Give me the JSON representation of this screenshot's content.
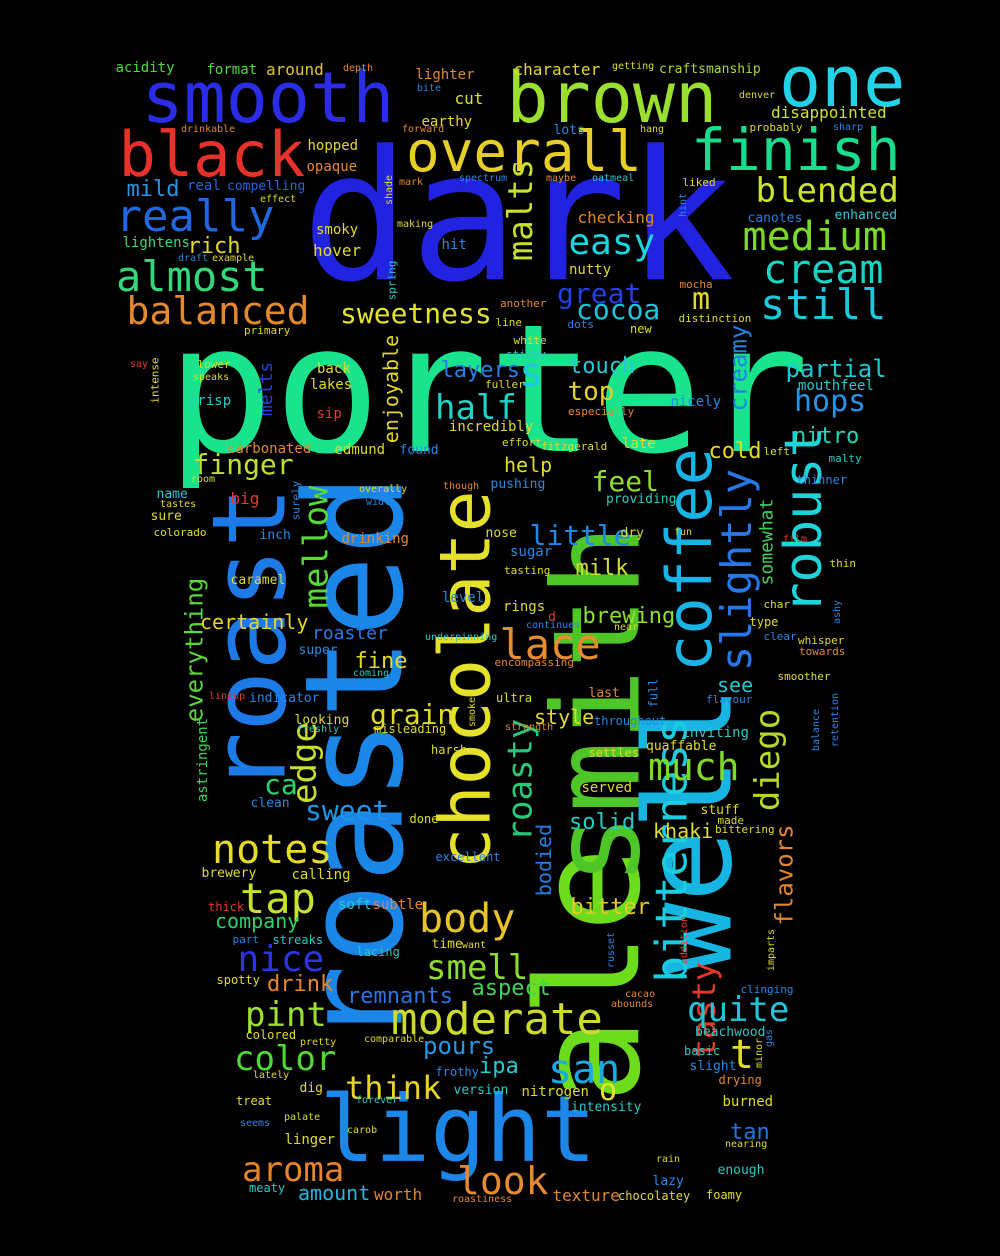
{
  "words": [
    {
      "t": "porter",
      "c": "#19e38c"
    },
    {
      "t": "dark",
      "c": "#2223e0"
    },
    {
      "t": "roasted",
      "c": "#1a86e8"
    },
    {
      "t": "ale",
      "c": "#6cdc1d"
    },
    {
      "t": "smith",
      "c": "#4ec628"
    },
    {
      "t": "well",
      "c": "#17b6e2"
    },
    {
      "t": "roast",
      "c": "#1c7be6"
    },
    {
      "t": "chocolate",
      "c": "#e5e12a"
    },
    {
      "t": "light",
      "c": "#1d87e7"
    },
    {
      "t": "smooth",
      "c": "#2a2ce6"
    },
    {
      "t": "brown",
      "c": "#9be031"
    },
    {
      "t": "one",
      "c": "#22d3e8"
    },
    {
      "t": "coffee",
      "c": "#19b4e5"
    },
    {
      "t": "black",
      "c": "#e8312a"
    },
    {
      "t": "overall",
      "c": "#e6cf29"
    },
    {
      "t": "finish",
      "c": "#1adc8d"
    },
    {
      "t": "robust",
      "c": "#1fd3d8"
    },
    {
      "t": "bitterness",
      "c": "#1acde0"
    },
    {
      "t": "really",
      "c": "#2168e0"
    },
    {
      "t": "medium",
      "c": "#7ad92a"
    },
    {
      "t": "cream",
      "c": "#1ad3c6"
    },
    {
      "t": "almost",
      "c": "#34d77a"
    },
    {
      "t": "balanced",
      "c": "#e48a2e"
    },
    {
      "t": "still",
      "c": "#1ec9dd"
    },
    {
      "t": "slightly",
      "c": "#2578e6"
    },
    {
      "t": "blended",
      "c": "#cde32f"
    },
    {
      "t": "moderate",
      "c": "#cddb2f"
    },
    {
      "t": "diego",
      "c": "#b6d72c"
    },
    {
      "t": "notes",
      "c": "#e4db2b"
    },
    {
      "t": "mellow",
      "c": "#54d937"
    },
    {
      "t": "malts",
      "c": "#c9e02e"
    },
    {
      "t": "easy",
      "c": "#1ad5e2"
    },
    {
      "t": "lace",
      "c": "#e68e2f"
    },
    {
      "t": "body",
      "c": "#e8c42b"
    },
    {
      "t": "tap",
      "c": "#c8e030"
    },
    {
      "t": "san",
      "c": "#1aa8e2"
    },
    {
      "t": "look",
      "c": "#e68a2f"
    },
    {
      "t": "much",
      "c": "#7ed92a"
    },
    {
      "t": "edge",
      "c": "#c6de2f"
    },
    {
      "t": "roasty",
      "c": "#29c879"
    },
    {
      "t": "aroma",
      "c": "#e5842d"
    },
    {
      "t": "nice",
      "c": "#2d35e3"
    },
    {
      "t": "pint",
      "c": "#9cdf32"
    },
    {
      "t": "color",
      "c": "#4edb37"
    },
    {
      "t": "smell",
      "c": "#8fdc31"
    },
    {
      "t": "half",
      "c": "#1ed5c8"
    },
    {
      "t": "think",
      "c": "#e7d22c"
    },
    {
      "t": "tasty",
      "c": "#e7382c"
    },
    {
      "t": "quite",
      "c": "#1fc7d8"
    },
    {
      "t": "sweetness",
      "c": "#e4e12f"
    },
    {
      "t": "great",
      "c": "#2340e2"
    },
    {
      "t": "cocoa",
      "c": "#1ec4d9"
    },
    {
      "t": "hops",
      "c": "#2694e6"
    },
    {
      "t": "finger",
      "c": "#bfe030"
    },
    {
      "t": "sweet",
      "c": "#1f95e6"
    },
    {
      "t": "everything",
      "c": "#5bd73a"
    },
    {
      "t": "creamy",
      "c": "#1c84e3"
    },
    {
      "t": "flavors",
      "c": "#e4862d"
    },
    {
      "t": "t",
      "c": "#e1d92b"
    },
    {
      "t": "m",
      "c": "#e2d92b"
    },
    {
      "t": "s",
      "c": "#1fc7e0"
    },
    {
      "t": "o",
      "c": "#e4e42f"
    },
    {
      "t": "ca",
      "c": "#26d36d"
    },
    {
      "t": "feel",
      "c": "#8fdd30"
    },
    {
      "t": "top",
      "c": "#e5d12b"
    },
    {
      "t": "little",
      "c": "#1e88e4"
    },
    {
      "t": "partial",
      "c": "#1ec9d3"
    },
    {
      "t": "layers",
      "c": "#2680e6"
    },
    {
      "t": "grain",
      "c": "#e0d92b"
    },
    {
      "t": "touch",
      "c": "#26c8d9"
    },
    {
      "t": "milk",
      "c": "#d1e030"
    },
    {
      "t": "pours",
      "c": "#2497e6"
    },
    {
      "t": "solid",
      "c": "#23cdc6"
    },
    {
      "t": "aspect",
      "c": "#3fd35a"
    },
    {
      "t": "drink",
      "c": "#e6862d"
    },
    {
      "t": "remnants",
      "c": "#2a75e4"
    },
    {
      "t": "fine",
      "c": "#e0db2b"
    },
    {
      "t": "bitter",
      "c": "#e5c92b"
    },
    {
      "t": "brewing",
      "c": "#91de31"
    },
    {
      "t": "nitro",
      "c": "#25d6b8"
    },
    {
      "t": "cold",
      "c": "#e6d72b"
    },
    {
      "t": "rich",
      "c": "#e5d72b"
    },
    {
      "t": "mild",
      "c": "#2595e6"
    },
    {
      "t": "help",
      "c": "#e3da2b"
    },
    {
      "t": "see",
      "c": "#1fc8d7"
    },
    {
      "t": "style",
      "c": "#e3d92b"
    },
    {
      "t": "khaki",
      "c": "#dcdf2e"
    },
    {
      "t": "certainly",
      "c": "#e4d62b"
    },
    {
      "t": "company",
      "c": "#2bd26c"
    },
    {
      "t": "amount",
      "c": "#22b8e2"
    },
    {
      "t": "worth",
      "c": "#e3862d"
    },
    {
      "t": "texture",
      "c": "#e4862d"
    },
    {
      "t": "ipa",
      "c": "#23c8d2"
    },
    {
      "t": "tan",
      "c": "#2374e4"
    },
    {
      "t": "bodied",
      "c": "#2480e4"
    },
    {
      "t": "somewhat",
      "c": "#3fd35a"
    },
    {
      "t": "enjoyable",
      "c": "#e4d72b"
    },
    {
      "t": "melts",
      "c": "#2740e2"
    },
    {
      "t": "roaster",
      "c": "#2a7be6"
    },
    {
      "t": "character",
      "c": "#e5d72b"
    },
    {
      "t": "disappointed",
      "c": "#cfe230"
    },
    {
      "t": "around",
      "c": "#e4c42b"
    },
    {
      "t": "format",
      "c": "#4bdc39"
    },
    {
      "t": "acidity",
      "c": "#4bdc39"
    },
    {
      "t": "lighter",
      "c": "#e48a2e"
    },
    {
      "t": "craftsmanship",
      "c": "#a7de30"
    },
    {
      "t": "cut",
      "c": "#dde02e"
    },
    {
      "t": "earthy",
      "c": "#e4d72b"
    },
    {
      "t": "hopped",
      "c": "#e5d72b"
    },
    {
      "t": "opaque",
      "c": "#e6862d"
    },
    {
      "t": "real",
      "c": "#2168e0"
    },
    {
      "t": "compelling",
      "c": "#2168e0"
    },
    {
      "t": "lots",
      "c": "#1f8ee4"
    },
    {
      "t": "checking",
      "c": "#e5862d"
    },
    {
      "t": "enhanced",
      "c": "#2ac9e0"
    },
    {
      "t": "canotes",
      "c": "#2480e4"
    },
    {
      "t": "lightens",
      "c": "#3bd87a"
    },
    {
      "t": "smoky",
      "c": "#e0db2b"
    },
    {
      "t": "hover",
      "c": "#e4d72b"
    },
    {
      "t": "hit",
      "c": "#2688e6"
    },
    {
      "t": "nutty",
      "c": "#e4d72b"
    },
    {
      "t": "back",
      "c": "#e0db2b"
    },
    {
      "t": "lakes",
      "c": "#e0db2b"
    },
    {
      "t": "crisp",
      "c": "#2ac9c8"
    },
    {
      "t": "sip",
      "c": "#e8382c"
    },
    {
      "t": "carbonated",
      "c": "#e5862d"
    },
    {
      "t": "edmund",
      "c": "#e0db2b"
    },
    {
      "t": "found",
      "c": "#2688e6"
    },
    {
      "t": "incredibly",
      "c": "#e0db2b"
    },
    {
      "t": "nicely",
      "c": "#2688e6"
    },
    {
      "t": "late",
      "c": "#e0db2b"
    },
    {
      "t": "mouthfeel",
      "c": "#2ac9c8"
    },
    {
      "t": "big",
      "c": "#e8382c"
    },
    {
      "t": "name",
      "c": "#1fc8d7"
    },
    {
      "t": "sure",
      "c": "#e0db2b"
    },
    {
      "t": "inch",
      "c": "#2688e6"
    },
    {
      "t": "caramel",
      "c": "#e0db2b"
    },
    {
      "t": "drinking",
      "c": "#e5862d"
    },
    {
      "t": "sugar",
      "c": "#2688e6"
    },
    {
      "t": "nose",
      "c": "#e0db2b"
    },
    {
      "t": "dry",
      "c": "#e0db2b"
    },
    {
      "t": "level",
      "c": "#2688e6"
    },
    {
      "t": "rings",
      "c": "#e0db2b"
    },
    {
      "t": "super",
      "c": "#2688e6"
    },
    {
      "t": "looking",
      "c": "#e0db2b"
    },
    {
      "t": "astringent",
      "c": "#3fd35a"
    },
    {
      "t": "clean",
      "c": "#2688e6"
    },
    {
      "t": "inviting",
      "c": "#2ac9c8"
    },
    {
      "t": "served",
      "c": "#e0db2b"
    },
    {
      "t": "quaffable",
      "c": "#e0db2b"
    },
    {
      "t": "stuff",
      "c": "#e0db2b"
    },
    {
      "t": "brewery",
      "c": "#e0db2b"
    },
    {
      "t": "calling",
      "c": "#e0db2b"
    },
    {
      "t": "soft",
      "c": "#2ac9c8"
    },
    {
      "t": "subtle",
      "c": "#e5862d"
    },
    {
      "t": "lacing",
      "c": "#2ac9c8"
    },
    {
      "t": "time",
      "c": "#e0db2b"
    },
    {
      "t": "beachwood",
      "c": "#2ac9c8"
    },
    {
      "t": "slight",
      "c": "#2688e6"
    },
    {
      "t": "version",
      "c": "#2ac9c8"
    },
    {
      "t": "nitrogen",
      "c": "#e0db2b"
    },
    {
      "t": "intensity",
      "c": "#2ac9c8"
    },
    {
      "t": "burned",
      "c": "#e0db2b"
    },
    {
      "t": "linger",
      "c": "#e0db2b"
    },
    {
      "t": "lazy",
      "c": "#2688e6"
    },
    {
      "t": "enough",
      "c": "#2ac9c8"
    },
    {
      "t": "foamy",
      "c": "#e0db2b"
    },
    {
      "t": "chocolatey",
      "c": "#e0db2b"
    },
    {
      "t": "dig",
      "c": "#e0db2b"
    },
    {
      "t": "colored",
      "c": "#e0db2b"
    },
    {
      "t": "spotty",
      "c": "#e0db2b"
    },
    {
      "t": "treat",
      "c": "#e0db2b"
    },
    {
      "t": "meaty",
      "c": "#2ac9c8"
    },
    {
      "t": "streaks",
      "c": "#2ac9c8"
    },
    {
      "t": "part",
      "c": "#2688e6"
    },
    {
      "t": "thick",
      "c": "#e8382c"
    },
    {
      "t": "frothy",
      "c": "#2688e6"
    },
    {
      "t": "basic",
      "c": "#2ac9c8"
    },
    {
      "t": "drying",
      "c": "#e5862d"
    },
    {
      "t": "ultra",
      "c": "#e0db2b"
    },
    {
      "t": "last",
      "c": "#e5862d"
    },
    {
      "t": "full",
      "c": "#2688e6"
    },
    {
      "t": "throughout",
      "c": "#2688e6"
    },
    {
      "t": "harsh",
      "c": "#e0db2b"
    },
    {
      "t": "settles",
      "c": "#e0db2b"
    },
    {
      "t": "done",
      "c": "#e0db2b"
    },
    {
      "t": "excellent",
      "c": "#2688e6"
    },
    {
      "t": "made",
      "c": "#e0db2b"
    },
    {
      "t": "bittering",
      "c": "#e0db2b"
    },
    {
      "t": "smoother",
      "c": "#e0db2b"
    },
    {
      "t": "flavour",
      "c": "#2688e6"
    },
    {
      "t": "whisper",
      "c": "#e0db2b"
    },
    {
      "t": "towards",
      "c": "#e5862d"
    },
    {
      "t": "char",
      "c": "#e0db2b"
    },
    {
      "t": "type",
      "c": "#e0db2b"
    },
    {
      "t": "clear",
      "c": "#2688e6"
    },
    {
      "t": "thinner",
      "c": "#2688e6"
    },
    {
      "t": "thin",
      "c": "#e0db2b"
    },
    {
      "t": "malty",
      "c": "#2ac9c8"
    },
    {
      "t": "left",
      "c": "#e0db2b"
    },
    {
      "t": "providing",
      "c": "#2ac9c8"
    },
    {
      "t": "pushing",
      "c": "#2688e6"
    },
    {
      "t": "effort",
      "c": "#e0db2b"
    },
    {
      "t": "fitzgerald",
      "c": "#e0db2b"
    },
    {
      "t": "especially",
      "c": "#e5862d"
    },
    {
      "t": "fuller",
      "c": "#e0db2b"
    },
    {
      "t": "sticky",
      "c": "#2ac9c8"
    },
    {
      "t": "white",
      "c": "#e0db2b"
    },
    {
      "t": "another",
      "c": "#e5862d"
    },
    {
      "t": "line",
      "c": "#e0db2b"
    },
    {
      "t": "new",
      "c": "#e0db2b"
    },
    {
      "t": "distinction",
      "c": "#e0db2b"
    },
    {
      "t": "mocha",
      "c": "#e5862d"
    },
    {
      "t": "primary",
      "c": "#e0db2b"
    },
    {
      "t": "spring",
      "c": "#2ac9c8"
    },
    {
      "t": "dots",
      "c": "#2688e6"
    },
    {
      "t": "say",
      "c": "#e8382c"
    },
    {
      "t": "lower",
      "c": "#e0db2b"
    },
    {
      "t": "speaks",
      "c": "#e0db2b"
    },
    {
      "t": "intense",
      "c": "#e0db2b"
    },
    {
      "t": "room",
      "c": "#e0db2b"
    },
    {
      "t": "tastes",
      "c": "#e0db2b"
    },
    {
      "t": "colorado",
      "c": "#e0db2b"
    },
    {
      "t": "overally",
      "c": "#e0db2b"
    },
    {
      "t": "width",
      "c": "#2688e6"
    },
    {
      "t": "surely",
      "c": "#2688e6"
    },
    {
      "t": "though",
      "c": "#e5862d"
    },
    {
      "t": "tasting",
      "c": "#e0db2b"
    },
    {
      "t": "fun",
      "c": "#e0db2b"
    },
    {
      "t": "film",
      "c": "#e8382c"
    },
    {
      "t": "continues",
      "c": "#2688e6"
    },
    {
      "t": "underpinning",
      "c": "#2ac9c8"
    },
    {
      "t": "encompassing",
      "c": "#e5862d"
    },
    {
      "t": "near",
      "c": "#e0db2b"
    },
    {
      "t": "coming",
      "c": "#2ac9c8"
    },
    {
      "t": "indicator",
      "c": "#2688e6"
    },
    {
      "t": "lineup",
      "c": "#e8382c"
    },
    {
      "t": "freshly",
      "c": "#2ac9c8"
    },
    {
      "t": "misleading",
      "c": "#e0db2b"
    },
    {
      "t": "smoke",
      "c": "#e0db2b"
    },
    {
      "t": "strength",
      "c": "#e5862d"
    },
    {
      "t": "balance",
      "c": "#2688e6"
    },
    {
      "t": "retention",
      "c": "#2688e6"
    },
    {
      "t": "ashy",
      "c": "#2688e6"
    },
    {
      "t": "addition",
      "c": "#e8382c"
    },
    {
      "t": "russet",
      "c": "#2688e6"
    },
    {
      "t": "imparts",
      "c": "#e0db2b"
    },
    {
      "t": "clinging",
      "c": "#2688e6"
    },
    {
      "t": "cacao",
      "c": "#e5862d"
    },
    {
      "t": "abounds",
      "c": "#e5862d"
    },
    {
      "t": "gas",
      "c": "#2688e6"
    },
    {
      "t": "minor",
      "c": "#e0db2b"
    },
    {
      "t": "want",
      "c": "#e0db2b"
    },
    {
      "t": "comparable",
      "c": "#e0db2b"
    },
    {
      "t": "pretty",
      "c": "#e0db2b"
    },
    {
      "t": "lately",
      "c": "#e0db2b"
    },
    {
      "t": "forever",
      "c": "#2ac9c8"
    },
    {
      "t": "palate",
      "c": "#e0db2b"
    },
    {
      "t": "seems",
      "c": "#2688e6"
    },
    {
      "t": "carob",
      "c": "#e0db2b"
    },
    {
      "t": "nearing",
      "c": "#e0db2b"
    },
    {
      "t": "rain",
      "c": "#e0db2b"
    },
    {
      "t": "roastiness",
      "c": "#e5862d"
    },
    {
      "t": "drinkable",
      "c": "#e5862d"
    },
    {
      "t": "forward",
      "c": "#e5862d"
    },
    {
      "t": "bite",
      "c": "#2688e6"
    },
    {
      "t": "depth",
      "c": "#e5862d"
    },
    {
      "t": "getting",
      "c": "#e0db2b"
    },
    {
      "t": "denver",
      "c": "#e0db2b"
    },
    {
      "t": "hang",
      "c": "#e0db2b"
    },
    {
      "t": "probably",
      "c": "#e0db2b"
    },
    {
      "t": "sharp",
      "c": "#2688e6"
    },
    {
      "t": "mark",
      "c": "#e5862d"
    },
    {
      "t": "shade",
      "c": "#e0db2b"
    },
    {
      "t": "spectrum",
      "c": "#2688e6"
    },
    {
      "t": "maybe",
      "c": "#e5862d"
    },
    {
      "t": "oatmeal",
      "c": "#2ac9c8"
    },
    {
      "t": "liked",
      "c": "#e0db2b"
    },
    {
      "t": "hint",
      "c": "#2688e6"
    },
    {
      "t": "effect",
      "c": "#e0db2b"
    },
    {
      "t": "making",
      "c": "#e0db2b"
    },
    {
      "t": "draft",
      "c": "#2688e6"
    },
    {
      "t": "example",
      "c": "#e0db2b"
    },
    {
      "t": "d",
      "c": "#e8382c"
    }
  ]
}
